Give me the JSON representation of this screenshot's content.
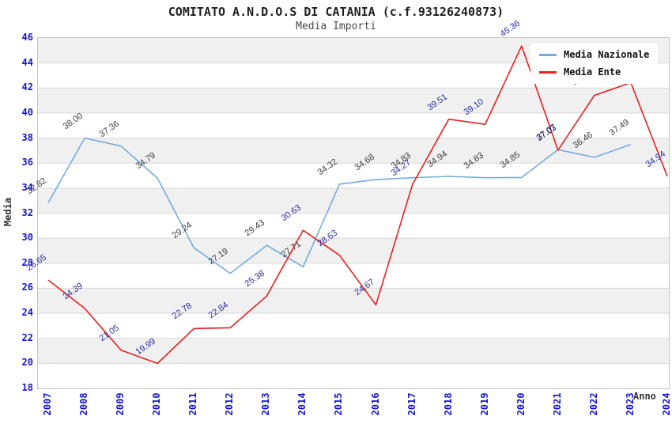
{
  "title": "COMITATO A.N.D.O.S DI CATANIA (c.f.93126240873)",
  "subtitle": "Media Importi",
  "chart_data": {
    "type": "line",
    "x": [
      2007,
      2008,
      2009,
      2010,
      2011,
      2012,
      2013,
      2014,
      2015,
      2016,
      2017,
      2018,
      2019,
      2020,
      2021,
      2022,
      2023,
      2024
    ],
    "xlabel": "Anno",
    "ylabel": "Media",
    "ylim": [
      18,
      46
    ],
    "ytick_step": 2,
    "yticks": [
      46,
      44,
      42,
      40,
      38,
      36,
      34,
      32,
      30,
      28,
      26,
      24,
      22,
      20,
      18
    ],
    "grid": "horizontal-bands",
    "legend_position": "top-right",
    "series": [
      {
        "name": "Media Nazionale",
        "color": "#75abe0",
        "label_color": "#3c3c3c",
        "values": [
          32.82,
          38.0,
          37.36,
          34.79,
          29.24,
          27.19,
          29.43,
          27.71,
          34.32,
          34.68,
          34.83,
          34.94,
          34.83,
          34.85,
          37.07,
          36.46,
          37.49
        ],
        "labels": [
          "32.82",
          "38.00",
          "37.36",
          "34.79",
          "29.24",
          "27.19",
          "29.43",
          "27.71",
          "34.32",
          "34.68",
          "34.83",
          "34.94",
          "34.83",
          "34.85",
          "37.07",
          "36.46",
          "37.49"
        ]
      },
      {
        "name": "Media Ente",
        "color": "#e62222",
        "label_color": "#2b2ba0",
        "values": [
          26.65,
          24.39,
          21.05,
          19.99,
          22.78,
          22.84,
          25.38,
          30.63,
          28.63,
          24.67,
          34.27,
          39.51,
          39.1,
          45.36,
          37.03,
          41.42,
          42.42,
          34.94
        ],
        "labels": [
          "26.65",
          "24.39",
          "21.05",
          "19.99",
          "22.78",
          "22.84",
          "25.38",
          "30.63",
          "28.63",
          "24.67",
          "34.27",
          "39.51",
          "39.10",
          "45.36",
          "37.03",
          "41.42",
          "42.42",
          "34.94"
        ]
      }
    ]
  },
  "colors": {
    "band_gray": "#f0f0f0",
    "band_white": "#ffffff",
    "gridline": "#d9d9d9",
    "plot_border": "#c4c4c4",
    "tick_blue": "#1515cf",
    "title_color": "#1f1f1f"
  }
}
